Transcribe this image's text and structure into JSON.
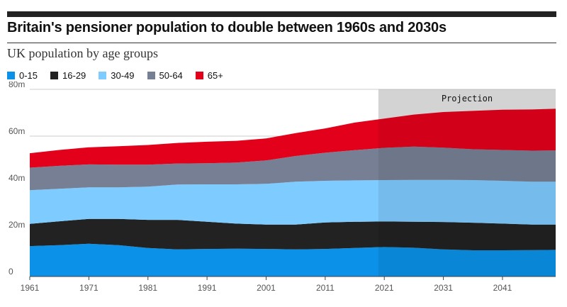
{
  "header": {
    "title": "Britain's pensioner population to double between 1960s and 2030s"
  },
  "chart_data": {
    "type": "area",
    "subtitle": "UK population by age groups",
    "stacked": true,
    "x": [
      1961,
      1966,
      1971,
      1976,
      1981,
      1986,
      1991,
      1996,
      2001,
      2006,
      2011,
      2016,
      2021,
      2026,
      2031,
      2036,
      2041,
      2046,
      2050
    ],
    "series": [
      {
        "name": "0-15",
        "color": "#0b91e8",
        "values": [
          13.0,
          13.4,
          14.0,
          13.4,
          12.2,
          11.6,
          11.8,
          11.9,
          11.8,
          11.6,
          11.8,
          12.2,
          12.6,
          12.3,
          11.6,
          11.2,
          11.2,
          11.3,
          11.4
        ]
      },
      {
        "name": "16-29",
        "color": "#222222",
        "values": [
          9.5,
          10.2,
          10.6,
          11.2,
          12.0,
          12.6,
          11.6,
          10.7,
          10.4,
          10.6,
          11.3,
          11.2,
          10.9,
          11.1,
          11.7,
          11.8,
          11.4,
          10.9,
          10.8
        ]
      },
      {
        "name": "30-49",
        "color": "#7ecbff",
        "values": [
          14.4,
          13.9,
          13.5,
          13.5,
          14.2,
          15.1,
          16.0,
          16.8,
          17.4,
          18.3,
          17.8,
          17.7,
          17.7,
          17.9,
          18.0,
          18.2,
          18.3,
          18.3,
          18.3
        ]
      },
      {
        "name": "50-64",
        "color": "#777f95",
        "values": [
          9.6,
          9.8,
          9.8,
          9.7,
          9.4,
          9.0,
          9.0,
          9.3,
          10.0,
          11.0,
          12.0,
          12.9,
          13.8,
          14.2,
          13.8,
          13.2,
          13.2,
          13.3,
          13.4
        ]
      },
      {
        "name": "65+",
        "color": "#e2001a",
        "values": [
          6.2,
          6.8,
          7.3,
          7.9,
          8.4,
          8.8,
          9.2,
          9.3,
          9.4,
          9.8,
          10.4,
          11.8,
          12.5,
          13.7,
          15.2,
          16.4,
          17.2,
          17.6,
          17.8
        ]
      }
    ],
    "y_ticks": [
      "0",
      "20m",
      "40m",
      "60m",
      "80m"
    ],
    "y_tick_values": [
      0,
      20,
      40,
      60,
      80
    ],
    "x_ticks": [
      "1961",
      "1971",
      "1981",
      "1991",
      "2001",
      "2011",
      "2021",
      "2031",
      "2041"
    ],
    "x_tick_values": [
      1961,
      1971,
      1981,
      1991,
      2001,
      2011,
      2021,
      2031,
      2041
    ],
    "xlim": [
      1961,
      2050
    ],
    "ylim": [
      0,
      80
    ],
    "grid": true,
    "legend_position": "top-left",
    "projection": {
      "label": "Projection",
      "start": 2020,
      "end": 2050
    }
  }
}
